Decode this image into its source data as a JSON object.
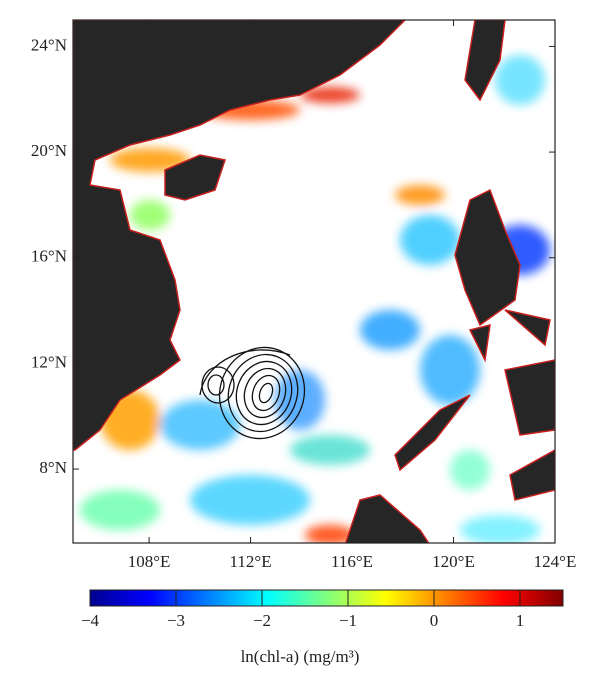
{
  "map": {
    "xlim": [
      105,
      124
    ],
    "ylim": [
      5.2,
      25
    ],
    "xticks": [
      {
        "value": 108,
        "label": "108°E"
      },
      {
        "value": 112,
        "label": "112°E"
      },
      {
        "value": 116,
        "label": "116°E"
      },
      {
        "value": 120,
        "label": "120°E"
      },
      {
        "value": 124,
        "label": "124°E"
      }
    ],
    "yticks": [
      {
        "value": 8,
        "label": "8°N"
      },
      {
        "value": 12,
        "label": "12°N"
      },
      {
        "value": 16,
        "label": "16°N"
      },
      {
        "value": 20,
        "label": "20°N"
      },
      {
        "value": 24,
        "label": "24°N"
      }
    ]
  },
  "colorbar": {
    "lim": [
      -4,
      1.5
    ],
    "ticks": [
      {
        "value": -4,
        "label": "−4"
      },
      {
        "value": -3,
        "label": "−3"
      },
      {
        "value": -2,
        "label": "−2"
      },
      {
        "value": -1,
        "label": "−1"
      },
      0,
      1
    ],
    "label": "ln(chl-a) (mg/m³)"
  }
}
